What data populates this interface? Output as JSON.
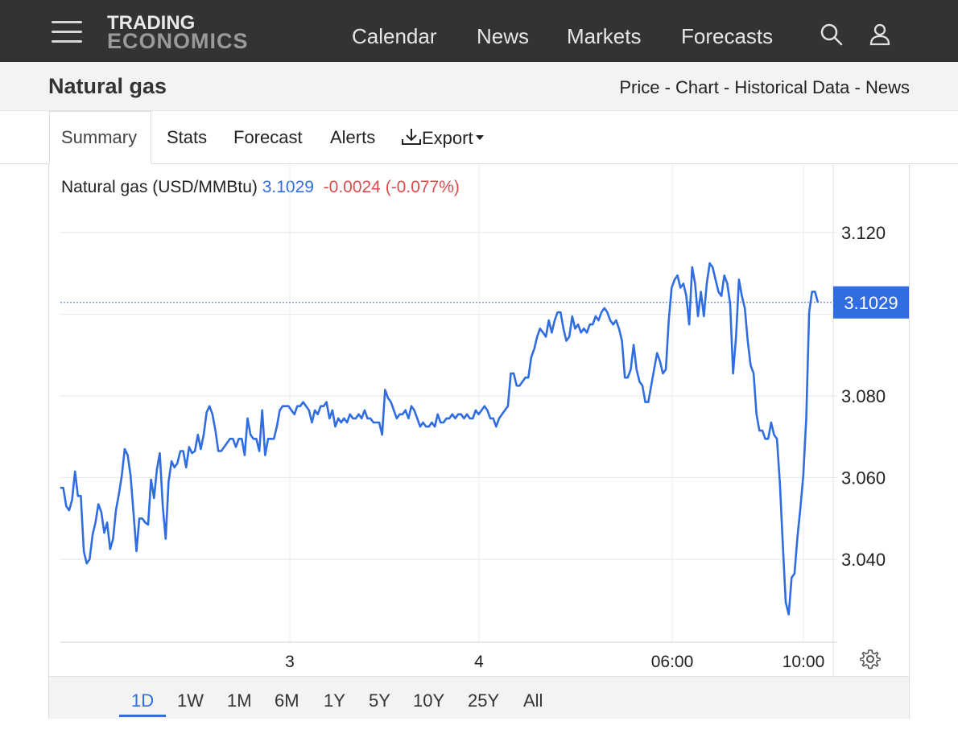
{
  "header": {
    "logo_line1": "TRADING",
    "logo_line2": "ECONOMICS",
    "nav": [
      "Calendar",
      "News",
      "Markets",
      "Forecasts"
    ]
  },
  "page": {
    "title": "Natural gas",
    "breadcrumb": [
      "Price",
      "Chart",
      "Historical Data",
      "News"
    ],
    "breadcrumb_sep": " - "
  },
  "tabs": {
    "items": [
      "Summary",
      "Stats",
      "Forecast",
      "Alerts"
    ],
    "export_label": "Export",
    "active": "Summary"
  },
  "quote": {
    "name": "Natural gas (USD/MMBtu)",
    "price": "3.1029",
    "change": "-0.0024 (-0.077%)"
  },
  "colors": {
    "line": "#2f6de1",
    "negative": "#e04a4a",
    "header_bg": "#333333"
  },
  "ranges": {
    "items": [
      "1D",
      "1W",
      "1M",
      "6M",
      "1Y",
      "5Y",
      "10Y",
      "25Y",
      "All"
    ],
    "active": "1D"
  },
  "chart_data": {
    "type": "line",
    "ylim": [
      3.02,
      3.135
    ],
    "y_ticks": [
      3.04,
      3.06,
      3.08,
      3.12
    ],
    "y_tick_labels": [
      "3.040",
      "3.060",
      "3.080",
      "3.120"
    ],
    "x_tick_labels": [
      "3",
      "4",
      "06:00",
      "10:00"
    ],
    "last_value_label": "3.1029",
    "last_value": 3.1029,
    "grid": true,
    "series": [
      {
        "values": [
          3.0575,
          3.0575,
          3.053,
          3.052,
          3.0545,
          3.0615,
          3.0555,
          3.0555,
          3.042,
          3.039,
          3.04,
          3.046,
          3.049,
          3.0535,
          3.0515,
          3.0465,
          3.049,
          3.0425,
          3.045,
          3.052,
          3.056,
          3.0605,
          3.067,
          3.0655,
          3.0605,
          3.0515,
          3.042,
          3.05,
          3.05,
          3.049,
          3.0485,
          3.0595,
          3.055,
          3.062,
          3.066,
          3.053,
          3.045,
          3.059,
          3.064,
          3.0625,
          3.0635,
          3.0665,
          3.0665,
          3.0625,
          3.0675,
          3.066,
          3.0665,
          3.0705,
          3.067,
          3.0705,
          3.076,
          3.0775,
          3.0755,
          3.0715,
          3.0665,
          3.0665,
          3.0675,
          3.0685,
          3.0695,
          3.0695,
          3.0675,
          3.0695,
          3.0695,
          3.0655,
          3.0745,
          3.0705,
          3.0695,
          3.0695,
          3.0665,
          3.0765,
          3.0655,
          3.0695,
          3.0695,
          3.0695,
          3.0725,
          3.0765,
          3.0775,
          3.0775,
          3.0775,
          3.0765,
          3.0755,
          3.0775,
          3.0775,
          3.0785,
          3.0775,
          3.0765,
          3.0735,
          3.0765,
          3.0755,
          3.0775,
          3.0775,
          3.0785,
          3.0745,
          3.0765,
          3.0725,
          3.0745,
          3.0735,
          3.0745,
          3.0735,
          3.0755,
          3.0745,
          3.0745,
          3.0755,
          3.0745,
          3.0765,
          3.0745,
          3.0745,
          3.0735,
          3.0735,
          3.0735,
          3.0705,
          3.0815,
          3.0795,
          3.0785,
          3.0765,
          3.0745,
          3.0755,
          3.0755,
          3.0765,
          3.0745,
          3.0775,
          3.0765,
          3.0745,
          3.0725,
          3.0735,
          3.0725,
          3.0725,
          3.0735,
          3.0725,
          3.0755,
          3.0735,
          3.0735,
          3.0745,
          3.0745,
          3.0755,
          3.0745,
          3.0755,
          3.0755,
          3.0745,
          3.0755,
          3.0745,
          3.0745,
          3.0765,
          3.0755,
          3.0765,
          3.0775,
          3.0765,
          3.0745,
          3.0745,
          3.0725,
          3.0745,
          3.0755,
          3.0765,
          3.0775,
          3.0855,
          3.0855,
          3.0825,
          3.0825,
          3.0835,
          3.0845,
          3.0845,
          3.0895,
          3.0915,
          3.0945,
          3.0965,
          3.0955,
          3.0945,
          3.0985,
          3.0955,
          3.0985,
          3.1005,
          3.1005,
          3.0965,
          3.0935,
          3.0945,
          3.0995,
          3.0965,
          3.0975,
          3.0955,
          3.0965,
          3.0955,
          3.0975,
          3.0975,
          3.0995,
          3.0985,
          3.1005,
          3.1015,
          3.1005,
          3.0985,
          3.0975,
          3.0985,
          3.0965,
          3.0935,
          3.0845,
          3.0845,
          3.0865,
          3.0925,
          3.0865,
          3.0835,
          3.0825,
          3.0785,
          3.0785,
          3.0825,
          3.0865,
          3.0905,
          3.0885,
          3.0855,
          3.0865,
          3.0985,
          3.1065,
          3.1085,
          3.1095,
          3.1065,
          3.1075,
          3.1045,
          3.0975,
          3.1115,
          3.1075,
          3.0995,
          3.1055,
          3.0995,
          3.1075,
          3.1125,
          3.1115,
          3.1085,
          3.1055,
          3.1045,
          3.1095,
          3.1075,
          3.1025,
          3.0855,
          3.0945,
          3.1085,
          3.1045,
          3.1015,
          3.0935,
          3.0875,
          3.0855,
          3.0755,
          3.0715,
          3.0715,
          3.0695,
          3.0695,
          3.0735,
          3.0705,
          3.0695,
          3.0585,
          3.0435,
          3.0295,
          3.0265,
          3.0355,
          3.0365,
          3.0455,
          3.0525,
          3.0605,
          3.0745,
          3.1005,
          3.1055,
          3.1055,
          3.1029
        ]
      }
    ]
  }
}
